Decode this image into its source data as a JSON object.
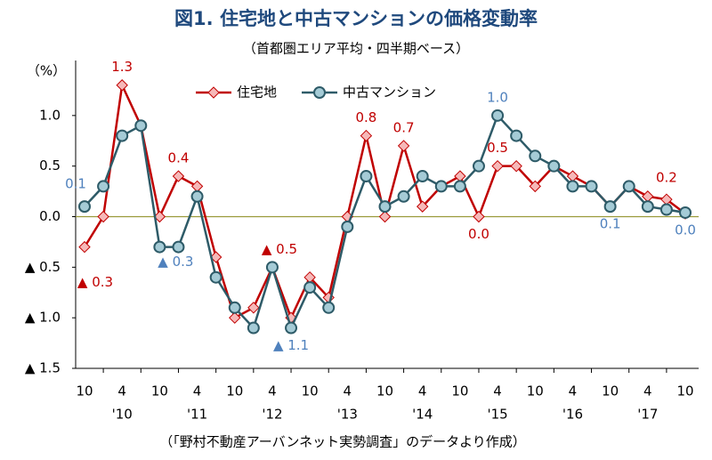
{
  "chart_data": {
    "type": "line",
    "title": "図1. 住宅地と中古マンションの価格変動率",
    "subtitle": "（首都圏エリア平均・四半期ベース）",
    "y_unit": "（%）",
    "source": "（「野村不動産アーバンネット実勢調査」のデータより作成）",
    "categories": [
      "10",
      null,
      "4",
      null,
      "10",
      null,
      "4",
      null,
      "10",
      null,
      "4",
      null,
      "10",
      null,
      "4",
      null,
      "10",
      null,
      "4",
      null,
      "10",
      null,
      "4",
      null,
      "10",
      null,
      "4",
      null,
      "10",
      null,
      "4",
      null,
      "10"
    ],
    "year_labels": [
      null,
      null,
      "'10",
      null,
      null,
      null,
      "'11",
      null,
      null,
      null,
      "'12",
      null,
      null,
      null,
      "'13",
      null,
      null,
      null,
      "'14",
      null,
      null,
      null,
      "'15",
      null,
      null,
      null,
      "'16",
      null,
      null,
      null,
      "'17",
      null,
      null
    ],
    "series": [
      {
        "name": "住宅地",
        "color": "#c00000",
        "marker_fill": "#f6b8b8",
        "label_color": "#c00000",
        "marker": "diamond",
        "values": [
          -0.3,
          0.0,
          1.3,
          0.9,
          0.0,
          0.4,
          0.3,
          -0.4,
          -1.0,
          -0.9,
          -0.5,
          -1.0,
          -0.6,
          -0.8,
          0.0,
          0.8,
          0.0,
          0.7,
          0.1,
          0.3,
          0.4,
          0.0,
          0.5,
          0.5,
          0.3,
          0.5,
          0.4,
          0.3,
          0.1,
          0.3,
          0.2,
          0.17,
          0.03
        ],
        "value_labels": [
          "▲ 0.3",
          null,
          "1.3",
          null,
          null,
          "0.4",
          null,
          null,
          null,
          null,
          "▲ 0.5",
          null,
          null,
          null,
          null,
          "0.8",
          null,
          "0.7",
          null,
          null,
          null,
          "0.0",
          "0.5",
          null,
          null,
          null,
          null,
          null,
          null,
          null,
          null,
          "0.2",
          null
        ]
      },
      {
        "name": "中古マンション",
        "color": "#2e5b68",
        "marker_fill": "#a5cbd6",
        "label_color": "#4f81bd",
        "marker": "circle",
        "values": [
          0.1,
          0.3,
          0.8,
          0.9,
          -0.3,
          -0.3,
          0.2,
          -0.6,
          -0.9,
          -1.1,
          -0.5,
          -1.1,
          -0.7,
          -0.9,
          -0.1,
          0.4,
          0.1,
          0.2,
          0.4,
          0.3,
          0.3,
          0.5,
          1.0,
          0.8,
          0.6,
          0.5,
          0.3,
          0.3,
          0.1,
          0.3,
          0.1,
          0.07,
          0.04
        ],
        "value_labels": [
          "0.1",
          null,
          null,
          null,
          "▲ 0.3",
          null,
          null,
          null,
          null,
          null,
          null,
          "▲ 1.1",
          null,
          null,
          null,
          null,
          null,
          null,
          null,
          null,
          null,
          null,
          "1.0",
          null,
          null,
          null,
          null,
          null,
          "0.1",
          null,
          null,
          null,
          "0.0"
        ]
      }
    ],
    "ylim": [
      -1.5,
      1.5
    ],
    "yticks": [
      {
        "value": -1.5,
        "label": "▲ 1.5"
      },
      {
        "value": -1.0,
        "label": "▲ 1.0"
      },
      {
        "value": -0.5,
        "label": "▲ 0.5"
      },
      {
        "value": 0,
        "label": "0.0"
      },
      0.5,
      {
        "value": 1.0,
        "label": "1.0"
      }
    ],
    "zero_line_color": "#9a9a3a",
    "legend": "top"
  }
}
